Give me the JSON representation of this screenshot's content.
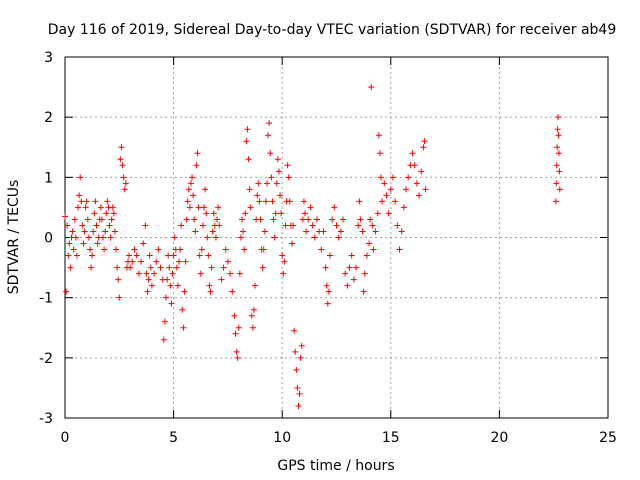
{
  "chart_data": {
    "type": "scatter",
    "title": "Day 116 of 2019, Sidereal Day-to-day VTEC variation (SDTVAR) for receiver ab49",
    "xlabel": "GPS time / hours",
    "ylabel": "SDTVAR / TECUs",
    "xlim": [
      0,
      25
    ],
    "ylim": [
      -3,
      3
    ],
    "xticks": [
      0,
      5,
      10,
      15,
      20,
      25
    ],
    "yticks": [
      -3,
      -2,
      -1,
      0,
      1,
      2,
      3
    ],
    "grid": true,
    "marker": "plus",
    "color": "#ff0000",
    "series": [
      {
        "name": "SDTVAR ab49",
        "points": [
          [
            0.0,
            0.35
          ],
          [
            0.05,
            -0.9
          ],
          [
            0.1,
            0.2
          ],
          [
            0.15,
            -0.3
          ],
          [
            0.2,
            -0.1
          ],
          [
            0.25,
            -0.5
          ],
          [
            0.3,
            0.0
          ],
          [
            0.35,
            0.1
          ],
          [
            0.4,
            -0.2
          ],
          [
            0.45,
            0.3
          ],
          [
            0.5,
            0.0
          ],
          [
            0.55,
            -0.3
          ],
          [
            0.6,
            0.5
          ],
          [
            0.65,
            0.7
          ],
          [
            0.7,
            1.0
          ],
          [
            0.75,
            0.6
          ],
          [
            0.8,
            0.2
          ],
          [
            0.85,
            -0.1
          ],
          [
            0.9,
            0.1
          ],
          [
            0.95,
            0.5
          ],
          [
            1.0,
            0.6
          ],
          [
            1.05,
            0.3
          ],
          [
            1.1,
            0.0
          ],
          [
            1.15,
            -0.2
          ],
          [
            1.2,
            -0.5
          ],
          [
            1.25,
            -0.3
          ],
          [
            1.3,
            0.1
          ],
          [
            1.35,
            0.4
          ],
          [
            1.4,
            0.6
          ],
          [
            1.45,
            0.2
          ],
          [
            1.5,
            -0.1
          ],
          [
            1.55,
            0.0
          ],
          [
            1.6,
            0.3
          ],
          [
            1.65,
            0.5
          ],
          [
            1.7,
            0.3
          ],
          [
            1.75,
            0.0
          ],
          [
            1.8,
            -0.2
          ],
          [
            1.85,
            0.1
          ],
          [
            1.9,
            0.4
          ],
          [
            1.95,
            0.6
          ],
          [
            2.0,
            0.5
          ],
          [
            2.05,
            0.2
          ],
          [
            2.1,
            0.0
          ],
          [
            2.15,
            0.3
          ],
          [
            2.2,
            0.5
          ],
          [
            2.25,
            0.4
          ],
          [
            2.3,
            0.1
          ],
          [
            2.35,
            -0.2
          ],
          [
            2.4,
            -0.5
          ],
          [
            2.45,
            -0.7
          ],
          [
            2.5,
            -1.0
          ],
          [
            2.55,
            1.3
          ],
          [
            2.6,
            1.5
          ],
          [
            2.65,
            1.2
          ],
          [
            2.7,
            1.0
          ],
          [
            2.75,
            0.8
          ],
          [
            2.8,
            0.9
          ],
          [
            2.85,
            -0.5
          ],
          [
            2.9,
            -0.4
          ],
          [
            2.95,
            -0.3
          ],
          [
            3.0,
            -0.5
          ],
          [
            3.1,
            -0.4
          ],
          [
            3.2,
            -0.2
          ],
          [
            3.3,
            -0.3
          ],
          [
            3.4,
            -0.6
          ],
          [
            3.5,
            -0.4
          ],
          [
            3.6,
            -0.1
          ],
          [
            3.7,
            0.2
          ],
          [
            3.75,
            -0.6
          ],
          [
            3.8,
            -0.9
          ],
          [
            3.85,
            -0.7
          ],
          [
            3.9,
            -0.3
          ],
          [
            3.95,
            -0.5
          ],
          [
            4.0,
            -0.8
          ],
          [
            4.1,
            -0.6
          ],
          [
            4.2,
            -0.4
          ],
          [
            4.3,
            -0.2
          ],
          [
            4.4,
            -0.5
          ],
          [
            4.5,
            -0.7
          ],
          [
            4.55,
            -1.7
          ],
          [
            4.6,
            -1.4
          ],
          [
            4.65,
            -1.0
          ],
          [
            4.7,
            -0.7
          ],
          [
            4.75,
            -0.3
          ],
          [
            4.8,
            -0.5
          ],
          [
            4.85,
            -0.8
          ],
          [
            4.9,
            -1.1
          ],
          [
            4.95,
            -0.6
          ],
          [
            5.0,
            -0.3
          ],
          [
            5.05,
            0.0
          ],
          [
            5.1,
            -0.2
          ],
          [
            5.15,
            -0.5
          ],
          [
            5.2,
            -0.8
          ],
          [
            5.25,
            -0.4
          ],
          [
            5.3,
            -0.2
          ],
          [
            5.35,
            0.2
          ],
          [
            5.4,
            -1.2
          ],
          [
            5.45,
            -1.5
          ],
          [
            5.5,
            -0.9
          ],
          [
            5.55,
            -0.4
          ],
          [
            5.6,
            0.3
          ],
          [
            5.65,
            0.6
          ],
          [
            5.7,
            0.8
          ],
          [
            5.75,
            0.5
          ],
          [
            5.8,
            0.9
          ],
          [
            5.85,
            1.0
          ],
          [
            5.9,
            0.7
          ],
          [
            5.95,
            0.3
          ],
          [
            6.0,
            0.1
          ],
          [
            6.05,
            1.2
          ],
          [
            6.1,
            1.4
          ],
          [
            6.15,
            0.5
          ],
          [
            6.2,
            -0.3
          ],
          [
            6.25,
            -0.6
          ],
          [
            6.3,
            -0.2
          ],
          [
            6.35,
            0.2
          ],
          [
            6.4,
            0.5
          ],
          [
            6.45,
            0.8
          ],
          [
            6.5,
            0.4
          ],
          [
            6.55,
            0.0
          ],
          [
            6.6,
            -0.3
          ],
          [
            6.65,
            -0.8
          ],
          [
            6.7,
            -0.9
          ],
          [
            6.75,
            -0.5
          ],
          [
            6.8,
            0.1
          ],
          [
            6.85,
            0.4
          ],
          [
            6.9,
            0.2
          ],
          [
            6.95,
            0.0
          ],
          [
            7.0,
            0.3
          ],
          [
            7.05,
            0.5
          ],
          [
            7.1,
            0.2
          ],
          [
            7.2,
            -0.7
          ],
          [
            7.3,
            -0.5
          ],
          [
            7.4,
            -0.2
          ],
          [
            7.5,
            -0.4
          ],
          [
            7.6,
            -0.6
          ],
          [
            7.7,
            -0.9
          ],
          [
            7.8,
            -1.3
          ],
          [
            7.85,
            -1.6
          ],
          [
            7.9,
            -1.9
          ],
          [
            7.95,
            -2.0
          ],
          [
            8.0,
            -1.5
          ],
          [
            8.05,
            -0.6
          ],
          [
            8.1,
            0.0
          ],
          [
            8.15,
            0.3
          ],
          [
            8.2,
            0.1
          ],
          [
            8.25,
            -0.2
          ],
          [
            8.3,
            0.4
          ],
          [
            8.35,
            1.6
          ],
          [
            8.4,
            1.8
          ],
          [
            8.45,
            1.3
          ],
          [
            8.5,
            0.8
          ],
          [
            8.55,
            0.5
          ],
          [
            8.6,
            -1.3
          ],
          [
            8.65,
            -1.5
          ],
          [
            8.7,
            -1.2
          ],
          [
            8.75,
            -0.8
          ],
          [
            8.8,
            0.3
          ],
          [
            8.85,
            0.7
          ],
          [
            8.9,
            0.9
          ],
          [
            8.95,
            0.6
          ],
          [
            9.0,
            0.3
          ],
          [
            9.05,
            -0.2
          ],
          [
            9.1,
            -0.5
          ],
          [
            9.15,
            -0.2
          ],
          [
            9.2,
            0.1
          ],
          [
            9.25,
            0.6
          ],
          [
            9.3,
            0.9
          ],
          [
            9.35,
            1.7
          ],
          [
            9.4,
            1.9
          ],
          [
            9.45,
            1.4
          ],
          [
            9.5,
            1.0
          ],
          [
            9.55,
            0.6
          ],
          [
            9.6,
            0.3
          ],
          [
            9.65,
            0.0
          ],
          [
            9.7,
            0.4
          ],
          [
            9.75,
            0.9
          ],
          [
            9.8,
            1.3
          ],
          [
            9.85,
            1.1
          ],
          [
            9.9,
            0.7
          ],
          [
            9.95,
            0.4
          ],
          [
            10.0,
            -0.3
          ],
          [
            10.05,
            -0.6
          ],
          [
            10.1,
            -0.4
          ],
          [
            10.15,
            0.2
          ],
          [
            10.2,
            0.6
          ],
          [
            10.25,
            1.2
          ],
          [
            10.3,
            1.0
          ],
          [
            10.35,
            0.6
          ],
          [
            10.4,
            0.2
          ],
          [
            10.45,
            -0.1
          ],
          [
            10.5,
            0.2
          ],
          [
            10.55,
            -1.55
          ],
          [
            10.6,
            -1.9
          ],
          [
            10.65,
            -2.2
          ],
          [
            10.7,
            -2.5
          ],
          [
            10.75,
            -2.8
          ],
          [
            10.8,
            -2.6
          ],
          [
            10.85,
            -2.0
          ],
          [
            10.9,
            -1.8
          ],
          [
            10.95,
            0.3
          ],
          [
            11.0,
            0.6
          ],
          [
            11.05,
            0.4
          ],
          [
            11.1,
            0.1
          ],
          [
            11.2,
            0.3
          ],
          [
            11.3,
            0.5
          ],
          [
            11.4,
            0.2
          ],
          [
            11.5,
            0.0
          ],
          [
            11.6,
            0.3
          ],
          [
            11.7,
            0.1
          ],
          [
            11.8,
            -0.2
          ],
          [
            11.9,
            0.1
          ],
          [
            12.0,
            -0.5
          ],
          [
            12.05,
            -0.8
          ],
          [
            12.1,
            -1.1
          ],
          [
            12.15,
            -0.9
          ],
          [
            12.2,
            -0.3
          ],
          [
            12.3,
            0.3
          ],
          [
            12.4,
            0.5
          ],
          [
            12.5,
            0.2
          ],
          [
            12.6,
            0.0
          ],
          [
            12.7,
            0.1
          ],
          [
            12.8,
            0.3
          ],
          [
            12.9,
            -0.6
          ],
          [
            13.0,
            -0.8
          ],
          [
            13.1,
            -0.5
          ],
          [
            13.2,
            -0.3
          ],
          [
            13.3,
            -0.7
          ],
          [
            13.4,
            -0.5
          ],
          [
            13.5,
            0.2
          ],
          [
            13.55,
            0.6
          ],
          [
            13.6,
            0.3
          ],
          [
            13.7,
            0.1
          ],
          [
            13.75,
            -0.9
          ],
          [
            13.8,
            -0.6
          ],
          [
            13.9,
            -0.3
          ],
          [
            14.0,
            -0.1
          ],
          [
            14.05,
            0.3
          ],
          [
            14.1,
            2.5
          ],
          [
            14.15,
            0.2
          ],
          [
            14.2,
            -0.2
          ],
          [
            14.3,
            0.1
          ],
          [
            14.4,
            0.4
          ],
          [
            14.45,
            1.7
          ],
          [
            14.5,
            1.4
          ],
          [
            14.55,
            1.0
          ],
          [
            14.6,
            0.6
          ],
          [
            14.7,
            0.9
          ],
          [
            14.8,
            0.7
          ],
          [
            14.9,
            0.4
          ],
          [
            15.0,
            0.8
          ],
          [
            15.1,
            1.0
          ],
          [
            15.2,
            0.6
          ],
          [
            15.3,
            0.2
          ],
          [
            15.4,
            -0.2
          ],
          [
            15.5,
            0.1
          ],
          [
            15.6,
            0.5
          ],
          [
            15.7,
            0.8
          ],
          [
            15.8,
            1.0
          ],
          [
            15.9,
            1.2
          ],
          [
            16.0,
            1.4
          ],
          [
            16.1,
            1.2
          ],
          [
            16.2,
            0.9
          ],
          [
            16.3,
            0.7
          ],
          [
            16.4,
            1.1
          ],
          [
            16.5,
            1.5
          ],
          [
            16.55,
            1.6
          ],
          [
            16.6,
            0.8
          ],
          [
            22.6,
            0.6
          ],
          [
            22.62,
            0.9
          ],
          [
            22.64,
            1.2
          ],
          [
            22.66,
            1.5
          ],
          [
            22.68,
            1.8
          ],
          [
            22.7,
            2.0
          ],
          [
            22.72,
            1.7
          ],
          [
            22.74,
            1.4
          ],
          [
            22.76,
            1.1
          ],
          [
            22.78,
            0.8
          ]
        ]
      }
    ]
  }
}
